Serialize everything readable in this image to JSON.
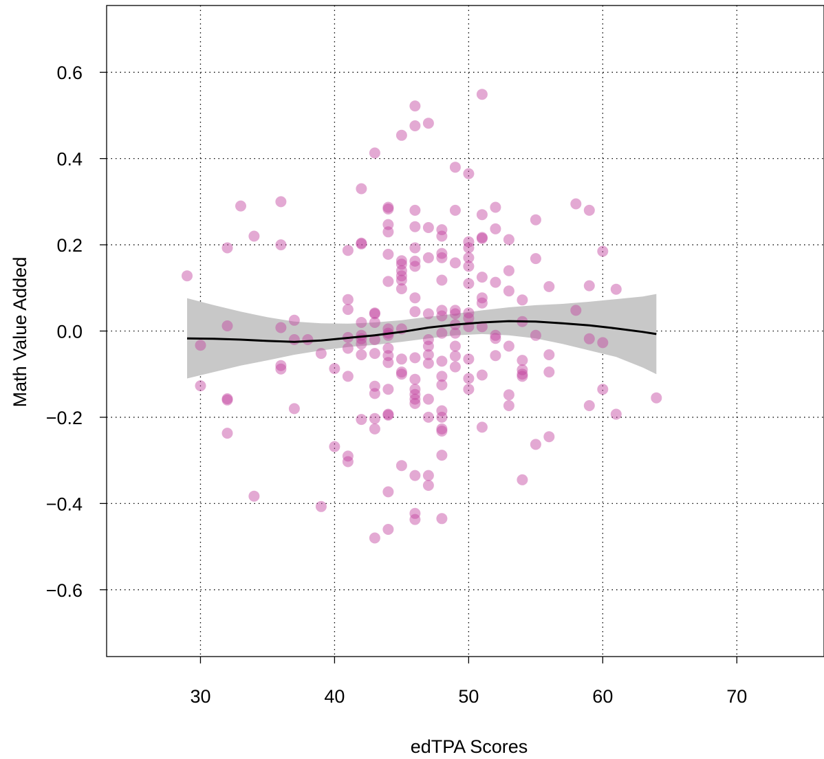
{
  "chart_data": {
    "type": "scatter",
    "xlabel": "edTPA Scores",
    "ylabel": "Math Value Added",
    "xlim": [
      23,
      76.5
    ],
    "ylim": [
      -0.755,
      0.755
    ],
    "x_ticks": [
      30,
      40,
      50,
      60,
      70
    ],
    "y_ticks": [
      0.6,
      0.4,
      0.2,
      0.0,
      -0.2,
      -0.4,
      -0.6
    ],
    "x_tick_labels": [
      "30",
      "40",
      "50",
      "60",
      "70"
    ],
    "y_tick_labels": [
      "0.6",
      "0.4",
      "0.2",
      "0.0",
      "−0.2",
      "−0.4",
      "−0.6"
    ],
    "grid": "dotted",
    "colors": {
      "points": "#c2409e",
      "smooth_line": "#000000",
      "confidence_band": "#c8c8c8"
    },
    "points": [
      [
        29,
        0.128
      ],
      [
        30,
        -0.033
      ],
      [
        30,
        -0.127
      ],
      [
        32,
        0.193
      ],
      [
        32,
        0.012
      ],
      [
        32,
        -0.157
      ],
      [
        32,
        -0.16
      ],
      [
        32,
        -0.237
      ],
      [
        33,
        0.29
      ],
      [
        34,
        0.22
      ],
      [
        34,
        -0.383
      ],
      [
        36,
        0.3
      ],
      [
        36,
        0.2
      ],
      [
        36,
        0.008
      ],
      [
        36,
        -0.08
      ],
      [
        36,
        -0.088
      ],
      [
        37,
        0.025
      ],
      [
        37,
        -0.02
      ],
      [
        37,
        -0.18
      ],
      [
        38,
        -0.02
      ],
      [
        39,
        -0.052
      ],
      [
        39,
        -0.407
      ],
      [
        40,
        -0.087
      ],
      [
        40,
        -0.268
      ],
      [
        41,
        0.187
      ],
      [
        41,
        0.073
      ],
      [
        41,
        0.05
      ],
      [
        41,
        -0.015
      ],
      [
        41,
        -0.04
      ],
      [
        41,
        -0.105
      ],
      [
        41,
        -0.29
      ],
      [
        41,
        -0.303
      ],
      [
        42,
        0.33
      ],
      [
        42,
        0.204
      ],
      [
        42,
        0.202
      ],
      [
        42,
        0.02
      ],
      [
        42,
        -0.01
      ],
      [
        42,
        -0.018
      ],
      [
        42,
        -0.03
      ],
      [
        42,
        -0.055
      ],
      [
        42,
        -0.205
      ],
      [
        43,
        0.413
      ],
      [
        43,
        0.042
      ],
      [
        43,
        0.04
      ],
      [
        43,
        0.02
      ],
      [
        43,
        -0.02
      ],
      [
        43,
        -0.052
      ],
      [
        43,
        -0.128
      ],
      [
        43,
        -0.145
      ],
      [
        43,
        -0.203
      ],
      [
        43,
        -0.227
      ],
      [
        43,
        -0.48
      ],
      [
        44,
        0.287
      ],
      [
        44,
        0.283
      ],
      [
        44,
        0.247
      ],
      [
        44,
        0.23
      ],
      [
        44,
        0.178
      ],
      [
        44,
        0.115
      ],
      [
        44,
        0.005
      ],
      [
        44,
        -0.005
      ],
      [
        44,
        -0.01
      ],
      [
        44,
        -0.04
      ],
      [
        44,
        -0.057
      ],
      [
        44,
        -0.073
      ],
      [
        44,
        -0.135
      ],
      [
        44,
        -0.193
      ],
      [
        44,
        -0.195
      ],
      [
        44,
        -0.373
      ],
      [
        44,
        -0.46
      ],
      [
        45,
        0.454
      ],
      [
        45,
        0.163
      ],
      [
        45,
        0.155
      ],
      [
        45,
        0.14
      ],
      [
        45,
        0.128
      ],
      [
        45,
        0.118
      ],
      [
        45,
        0.098
      ],
      [
        45,
        0.005
      ],
      [
        45,
        -0.065
      ],
      [
        45,
        -0.095
      ],
      [
        45,
        -0.1
      ],
      [
        45,
        -0.312
      ],
      [
        46,
        0.522
      ],
      [
        46,
        0.476
      ],
      [
        46,
        0.28
      ],
      [
        46,
        0.242
      ],
      [
        46,
        0.193
      ],
      [
        46,
        0.162
      ],
      [
        46,
        0.15
      ],
      [
        46,
        0.077
      ],
      [
        46,
        0.045
      ],
      [
        46,
        -0.062
      ],
      [
        46,
        -0.112
      ],
      [
        46,
        -0.135
      ],
      [
        46,
        -0.147
      ],
      [
        46,
        -0.158
      ],
      [
        46,
        -0.168
      ],
      [
        46,
        -0.335
      ],
      [
        46,
        -0.423
      ],
      [
        46,
        -0.437
      ],
      [
        47,
        0.482
      ],
      [
        47,
        0.24
      ],
      [
        47,
        0.17
      ],
      [
        47,
        0.04
      ],
      [
        47,
        -0.02
      ],
      [
        47,
        -0.035
      ],
      [
        47,
        -0.055
      ],
      [
        47,
        -0.075
      ],
      [
        47,
        -0.158
      ],
      [
        47,
        -0.2
      ],
      [
        47,
        -0.335
      ],
      [
        47,
        -0.358
      ],
      [
        48,
        0.235
      ],
      [
        48,
        0.22
      ],
      [
        48,
        0.18
      ],
      [
        48,
        0.17
      ],
      [
        48,
        0.118
      ],
      [
        48,
        0.048
      ],
      [
        48,
        0.035
      ],
      [
        48,
        -0.005
      ],
      [
        48,
        -0.07
      ],
      [
        48,
        -0.105
      ],
      [
        48,
        -0.125
      ],
      [
        48,
        -0.185
      ],
      [
        48,
        -0.2
      ],
      [
        48,
        -0.227
      ],
      [
        48,
        -0.232
      ],
      [
        48,
        -0.288
      ],
      [
        48,
        -0.435
      ],
      [
        49,
        0.38
      ],
      [
        49,
        0.28
      ],
      [
        49,
        0.158
      ],
      [
        49,
        0.048
      ],
      [
        49,
        0.04
      ],
      [
        49,
        0.015
      ],
      [
        49,
        -0.005
      ],
      [
        49,
        -0.035
      ],
      [
        49,
        -0.058
      ],
      [
        49,
        -0.083
      ],
      [
        50,
        0.365
      ],
      [
        50,
        0.207
      ],
      [
        50,
        0.193
      ],
      [
        50,
        0.17
      ],
      [
        50,
        0.15
      ],
      [
        50,
        0.11
      ],
      [
        50,
        0.042
      ],
      [
        50,
        0.03
      ],
      [
        50,
        0.01
      ],
      [
        50,
        -0.065
      ],
      [
        50,
        -0.11
      ],
      [
        50,
        -0.135
      ],
      [
        51,
        0.549
      ],
      [
        51,
        0.27
      ],
      [
        51,
        0.217
      ],
      [
        51,
        0.215
      ],
      [
        51,
        0.125
      ],
      [
        51,
        0.077
      ],
      [
        51,
        0.065
      ],
      [
        51,
        0.01
      ],
      [
        51,
        -0.102
      ],
      [
        51,
        -0.223
      ],
      [
        52,
        0.287
      ],
      [
        52,
        0.237
      ],
      [
        52,
        0.113
      ],
      [
        52,
        -0.01
      ],
      [
        52,
        -0.017
      ],
      [
        52,
        -0.057
      ],
      [
        53,
        0.212
      ],
      [
        53,
        0.14
      ],
      [
        53,
        0.093
      ],
      [
        53,
        -0.035
      ],
      [
        53,
        -0.148
      ],
      [
        53,
        -0.173
      ],
      [
        54,
        0.072
      ],
      [
        54,
        0.022
      ],
      [
        54,
        -0.068
      ],
      [
        54,
        -0.09
      ],
      [
        54,
        -0.1
      ],
      [
        54,
        -0.105
      ],
      [
        54,
        -0.345
      ],
      [
        55,
        0.258
      ],
      [
        55,
        0.168
      ],
      [
        55,
        -0.01
      ],
      [
        55,
        -0.263
      ],
      [
        56,
        0.103
      ],
      [
        56,
        -0.055
      ],
      [
        56,
        -0.095
      ],
      [
        56,
        -0.245
      ],
      [
        58,
        0.295
      ],
      [
        58,
        0.048
      ],
      [
        59,
        0.28
      ],
      [
        59,
        0.105
      ],
      [
        59,
        -0.018
      ],
      [
        59,
        -0.173
      ],
      [
        60,
        0.185
      ],
      [
        60,
        -0.027
      ],
      [
        60,
        -0.135
      ],
      [
        61,
        0.097
      ],
      [
        61,
        -0.193
      ],
      [
        64,
        -0.155
      ]
    ],
    "smooth_fit": {
      "x": [
        29,
        31,
        33,
        35,
        37,
        39,
        41,
        43,
        45,
        47,
        49,
        51,
        53,
        55,
        57,
        59,
        61,
        63,
        64
      ],
      "y": [
        -0.017,
        -0.018,
        -0.02,
        -0.023,
        -0.025,
        -0.022,
        -0.016,
        -0.01,
        -0.002,
        0.008,
        0.015,
        0.02,
        0.023,
        0.022,
        0.018,
        0.013,
        0.006,
        -0.002,
        -0.007
      ],
      "lower": [
        -0.11,
        -0.095,
        -0.08,
        -0.068,
        -0.055,
        -0.045,
        -0.037,
        -0.032,
        -0.025,
        -0.017,
        -0.01,
        -0.007,
        -0.01,
        -0.017,
        -0.03,
        -0.045,
        -0.06,
        -0.085,
        -0.1
      ],
      "upper": [
        0.076,
        0.06,
        0.045,
        0.032,
        0.022,
        0.018,
        0.017,
        0.02,
        0.025,
        0.033,
        0.04,
        0.048,
        0.055,
        0.06,
        0.063,
        0.068,
        0.074,
        0.08,
        0.086
      ]
    }
  }
}
